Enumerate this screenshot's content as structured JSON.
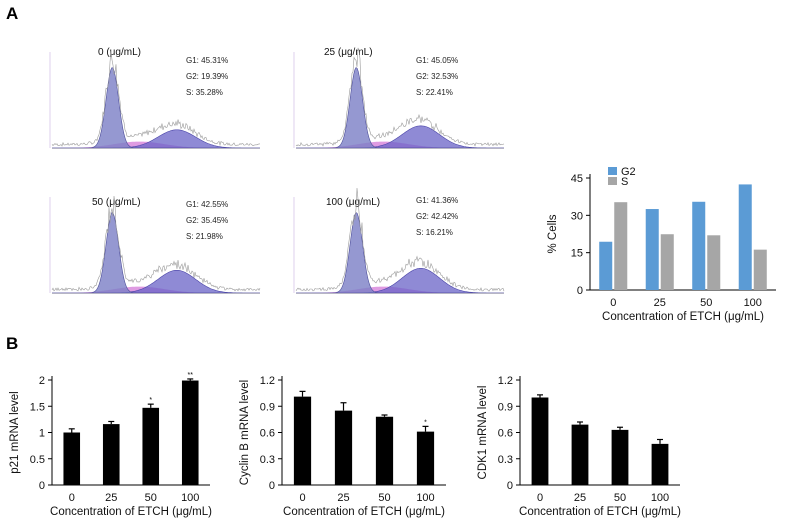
{
  "panels": {
    "a_label": "A",
    "b_label": "B"
  },
  "colors": {
    "g2": "#5b9bd5",
    "s": "#a6a6a6",
    "bar_b": "#000000",
    "g1_fill": "#7b7ec6",
    "s_fill": "#d47ad8",
    "g2_fill": "#6a63c7"
  },
  "flow_histograms": [
    {
      "title": "0 (μg/mL)",
      "g1": "G1: 45.31%",
      "g2": "G2: 19.39%",
      "s": "S: 35.28%"
    },
    {
      "title": "25 (μg/mL)",
      "g1": "G1: 45.05%",
      "g2": "G2: 32.53%",
      "s": "S: 22.41%"
    },
    {
      "title": "50 (μg/mL)",
      "g1": "G1: 42.55%",
      "g2": "G2: 35.45%",
      "s": "S: 21.98%"
    },
    {
      "title": "100 (μg/mL)",
      "g1": "G1: 41.36%",
      "g2": "G2: 42.42%",
      "s": "S: 16.21%"
    }
  ],
  "chart_data": [
    {
      "id": "cells",
      "type": "bar",
      "categories": [
        "0",
        "25",
        "50",
        "100"
      ],
      "series": [
        {
          "name": "G2",
          "values": [
            19.39,
            32.53,
            35.45,
            42.42
          ]
        },
        {
          "name": "S",
          "values": [
            35.28,
            22.41,
            21.98,
            16.21
          ]
        }
      ],
      "legend": [
        "G2",
        "S"
      ],
      "xlabel": "Concentration of ETCH (μg/mL)",
      "ylabel": "% Cells",
      "ylim": [
        0,
        45
      ],
      "yticks": [
        "0",
        "15",
        "30",
        "45"
      ]
    },
    {
      "id": "p21",
      "type": "bar",
      "categories": [
        "0",
        "25",
        "50",
        "100"
      ],
      "values": [
        1.0,
        1.16,
        1.47,
        1.99
      ],
      "errors": [
        0.07,
        0.05,
        0.07,
        0.03
      ],
      "annotations": [
        "",
        "",
        "*",
        "**"
      ],
      "xlabel": "Concentration of ETCH (μg/mL)",
      "ylabel": "p21 mRNA level",
      "ylim": [
        0,
        2
      ],
      "yticks": [
        "0",
        "0.5",
        "1",
        "1.5",
        "2"
      ]
    },
    {
      "id": "cyclinb",
      "type": "bar",
      "categories": [
        "0",
        "25",
        "50",
        "100"
      ],
      "values": [
        1.01,
        0.85,
        0.78,
        0.61
      ],
      "errors": [
        0.06,
        0.09,
        0.02,
        0.06
      ],
      "annotations": [
        "",
        "",
        "",
        "*"
      ],
      "xlabel": "Concentration of ETCH (μg/mL)",
      "ylabel": "Cyclin B mRNA level",
      "ylim": [
        0,
        1.2
      ],
      "yticks": [
        "0",
        "0.3",
        "0.6",
        "0.9",
        "1.2"
      ]
    },
    {
      "id": "cdk1",
      "type": "bar",
      "categories": [
        "0",
        "25",
        "50",
        "100"
      ],
      "values": [
        1.0,
        0.69,
        0.63,
        0.47
      ],
      "errors": [
        0.03,
        0.03,
        0.03,
        0.05
      ],
      "annotations": [
        "",
        "",
        "",
        ""
      ],
      "xlabel": "Concentration of ETCH (μg/mL)",
      "ylabel": "CDK1 mRNA level",
      "ylim": [
        0,
        1.2
      ],
      "yticks": [
        "0",
        "0.3",
        "0.6",
        "0.9",
        "1.2"
      ]
    }
  ]
}
